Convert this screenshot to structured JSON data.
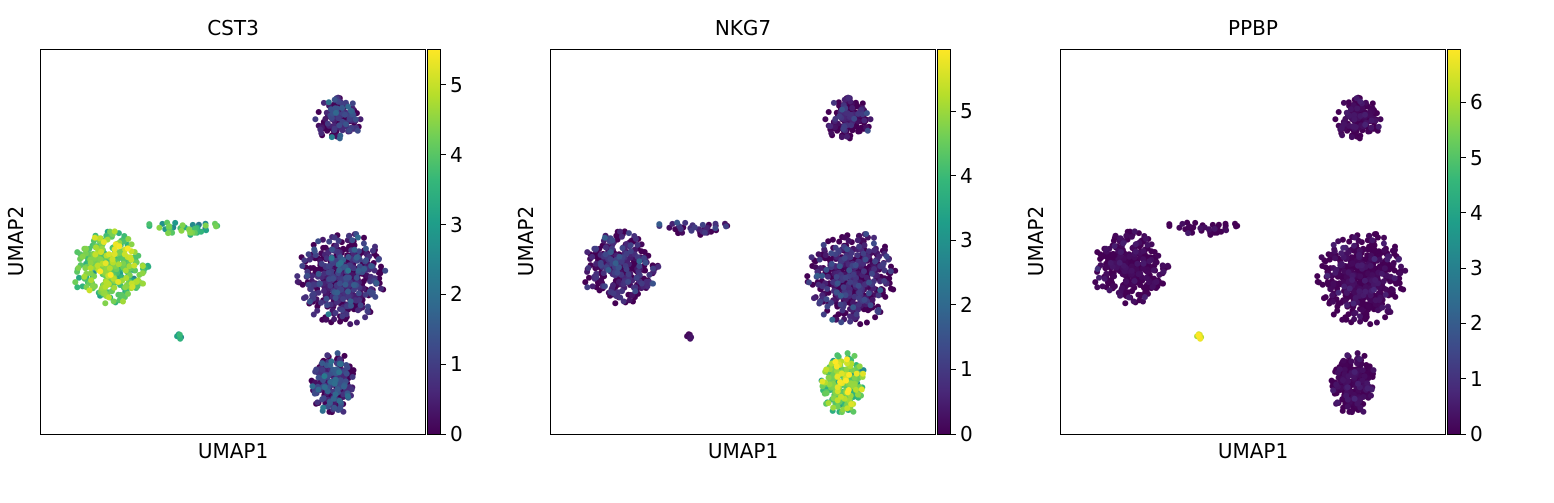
{
  "figure": {
    "xlabel": "UMAP1",
    "ylabel": "UMAP2",
    "colormap": "viridis",
    "colormap_colors": [
      "#440154",
      "#482878",
      "#3e4989",
      "#31688e",
      "#26828e",
      "#1f9e89",
      "#35b779",
      "#6ece58",
      "#b5de2b",
      "#fde725"
    ]
  },
  "chart_data": [
    {
      "type": "scatter",
      "title": "CST3",
      "xlabel": "UMAP1",
      "ylabel": "UMAP2",
      "color_scale": {
        "min": 0,
        "max": 5.5,
        "ticks": [
          "0",
          "1",
          "2",
          "3",
          "4",
          "5"
        ],
        "tick_values": [
          0,
          1,
          2,
          3,
          4,
          5
        ]
      },
      "clusters": [
        {
          "name": "",
          "center": [
            7.9,
            8.4
          ],
          "spread": [
            0.65,
            0.55
          ],
          "n": 160,
          "expression_mean": 0.6,
          "expression_sd": 0.5
        },
        {
          "name": "",
          "center": [
            1.6,
            4.3
          ],
          "spread": [
            1.0,
            0.95
          ],
          "n": 330,
          "expression_mean": 4.2,
          "expression_sd": 0.55
        },
        {
          "name": "",
          "center": [
            3.6,
            5.4
          ],
          "spread": [
            0.95,
            0.22
          ],
          "n": 40,
          "expression_mean": 3.9,
          "expression_sd": 0.7
        },
        {
          "name": "",
          "center": [
            3.5,
            2.4
          ],
          "spread": [
            0.12,
            0.1
          ],
          "n": 8,
          "expression_mean": 3.0,
          "expression_sd": 0.4
        },
        {
          "name": "",
          "center": [
            8.0,
            4.0
          ],
          "spread": [
            1.15,
            1.25
          ],
          "n": 520,
          "expression_mean": 0.7,
          "expression_sd": 0.55
        },
        {
          "name": "",
          "center": [
            7.8,
            1.1
          ],
          "spread": [
            0.6,
            0.85
          ],
          "n": 260,
          "expression_mean": 0.9,
          "expression_sd": 0.6
        }
      ]
    },
    {
      "type": "scatter",
      "title": "NKG7",
      "xlabel": "UMAP1",
      "ylabel": "UMAP2",
      "color_scale": {
        "min": 0,
        "max": 5.95,
        "ticks": [
          "0",
          "1",
          "2",
          "3",
          "4",
          "5"
        ],
        "tick_values": [
          0,
          1,
          2,
          3,
          4,
          5
        ]
      },
      "clusters": [
        {
          "name": "",
          "center": [
            7.9,
            8.4
          ],
          "spread": [
            0.65,
            0.55
          ],
          "n": 160,
          "expression_mean": 0.4,
          "expression_sd": 0.5
        },
        {
          "name": "",
          "center": [
            1.6,
            4.3
          ],
          "spread": [
            1.0,
            0.95
          ],
          "n": 330,
          "expression_mean": 0.6,
          "expression_sd": 0.55
        },
        {
          "name": "",
          "center": [
            3.6,
            5.4
          ],
          "spread": [
            0.95,
            0.22
          ],
          "n": 40,
          "expression_mean": 0.7,
          "expression_sd": 0.5
        },
        {
          "name": "",
          "center": [
            3.5,
            2.4
          ],
          "spread": [
            0.12,
            0.1
          ],
          "n": 8,
          "expression_mean": 0.2,
          "expression_sd": 0.2
        },
        {
          "name": "",
          "center": [
            8.0,
            4.0
          ],
          "spread": [
            1.15,
            1.25
          ],
          "n": 520,
          "expression_mean": 0.5,
          "expression_sd": 0.5
        },
        {
          "name": "",
          "center": [
            7.8,
            1.1
          ],
          "spread": [
            0.6,
            0.85
          ],
          "n": 260,
          "expression_mean": 4.3,
          "expression_sd": 0.8
        }
      ]
    },
    {
      "type": "scatter",
      "title": "PPBP",
      "xlabel": "UMAP1",
      "ylabel": "UMAP2",
      "color_scale": {
        "min": 0,
        "max": 6.95,
        "ticks": [
          "0",
          "1",
          "2",
          "3",
          "4",
          "5",
          "6"
        ],
        "tick_values": [
          0,
          1,
          2,
          3,
          4,
          5,
          6
        ]
      },
      "clusters": [
        {
          "name": "",
          "center": [
            7.9,
            8.4
          ],
          "spread": [
            0.65,
            0.55
          ],
          "n": 160,
          "expression_mean": 0.1,
          "expression_sd": 0.25
        },
        {
          "name": "",
          "center": [
            1.6,
            4.3
          ],
          "spread": [
            1.0,
            0.95
          ],
          "n": 330,
          "expression_mean": 0.1,
          "expression_sd": 0.25
        },
        {
          "name": "",
          "center": [
            3.6,
            5.4
          ],
          "spread": [
            0.95,
            0.22
          ],
          "n": 40,
          "expression_mean": 0.1,
          "expression_sd": 0.25
        },
        {
          "name": "",
          "center": [
            3.5,
            2.4
          ],
          "spread": [
            0.12,
            0.1
          ],
          "n": 8,
          "expression_mean": 6.5,
          "expression_sd": 0.3
        },
        {
          "name": "",
          "center": [
            8.0,
            4.0
          ],
          "spread": [
            1.15,
            1.25
          ],
          "n": 520,
          "expression_mean": 0.1,
          "expression_sd": 0.25
        },
        {
          "name": "",
          "center": [
            7.8,
            1.1
          ],
          "spread": [
            0.6,
            0.85
          ],
          "n": 260,
          "expression_mean": 0.1,
          "expression_sd": 0.25
        }
      ]
    }
  ]
}
